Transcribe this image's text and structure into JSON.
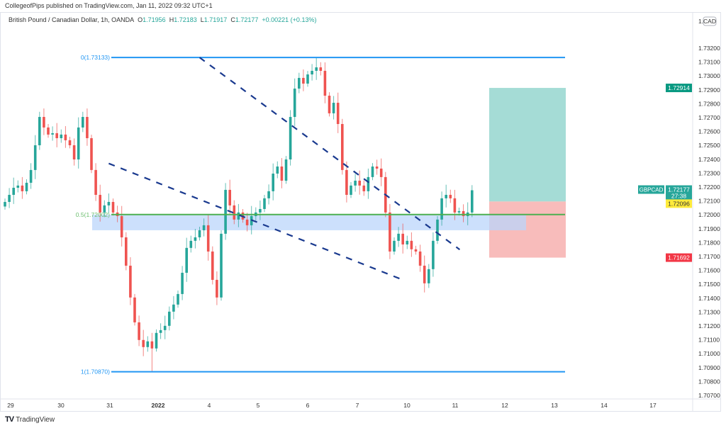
{
  "header": {
    "published": "CollegeofPips published on TradingView.com, Jan 11, 2022 09:32 UTC+1"
  },
  "legend": {
    "symbol": "British Pound / Canadian Dollar, 1h, OANDA",
    "o_label": "O",
    "o": "1.71956",
    "h_label": "H",
    "h": "1.72183",
    "l_label": "L",
    "l": "1.71917",
    "c_label": "C",
    "c": "1.72177",
    "change": "+0.00221 (+0.13%)"
  },
  "currency_badge": "CAD",
  "footer": {
    "logo_text": "TradingView",
    "logo_icon": "tradingview-logo-icon"
  },
  "colors": {
    "up": "#26a69a",
    "down": "#ef5350",
    "fib": "#2196f3",
    "mid": "#4caf50",
    "zone": "#bbd6fb",
    "trend": "#1a3a8f",
    "target": "#a5dcd6",
    "stop": "#f8bcbb"
  },
  "chart_data": {
    "type": "candlestick",
    "symbol": "GBPCAD",
    "timeframe": "1h",
    "ylim": [
      1.707,
      1.732
    ],
    "y_ticks": [
      "1.73200",
      "1.73100",
      "1.73000",
      "1.72900",
      "1.72800",
      "1.72700",
      "1.72600",
      "1.72500",
      "1.72400",
      "1.72300",
      "1.72200",
      "1.72100",
      "1.72000",
      "1.71900",
      "1.71800",
      "1.71700",
      "1.71600",
      "1.71500",
      "1.71400",
      "1.71300",
      "1.71200",
      "1.71100",
      "1.71000",
      "1.70900",
      "1.70800",
      "1.70700"
    ],
    "x_ticks": [
      "29",
      "30",
      "31",
      "2022",
      "4",
      "5",
      "6",
      "7",
      "10",
      "11",
      "12",
      "13",
      "14",
      "17"
    ],
    "closes": [
      1.72093,
      1.72144,
      1.72195,
      1.72211,
      1.7217,
      1.72231,
      1.72323,
      1.72501,
      1.72705,
      1.72629,
      1.72578,
      1.72588,
      1.72552,
      1.72578,
      1.72537,
      1.72501,
      1.72399,
      1.72629,
      1.72705,
      1.72552,
      1.72323,
      1.72144,
      1.72017,
      1.72068,
      1.72093,
      1.72017,
      1.71991,
      1.71838,
      1.71634,
      1.71405,
      1.71226,
      1.71099,
      1.71048,
      1.71089,
      1.71038,
      1.7115,
      1.7117,
      1.71201,
      1.71303,
      1.71354,
      1.7143,
      1.71583,
      1.71762,
      1.71813,
      1.71838,
      1.71889,
      1.71925,
      1.71736,
      1.71532,
      1.71405,
      1.71864,
      1.7218,
      1.72068,
      1.71966,
      1.72017,
      1.71966,
      1.71925,
      1.71991,
      1.72017,
      1.72042,
      1.72119,
      1.7217,
      1.72297,
      1.72348,
      1.72246,
      1.72399,
      1.72705,
      1.72909,
      1.72986,
      1.72945,
      1.73011,
      1.73037,
      1.73062,
      1.73037,
      1.72858,
      1.72731,
      1.72807,
      1.72654,
      1.72323,
      1.72144,
      1.72211,
      1.72246,
      1.72211,
      1.7217,
      1.72272,
      1.72348,
      1.72333,
      1.72272,
      1.72017,
      1.71736,
      1.71813,
      1.71864,
      1.71787,
      1.71813,
      1.71752,
      1.71736,
      1.71634,
      1.71507,
      1.71609,
      1.71813,
      1.71966,
      1.72119,
      1.72144,
      1.72119,
      1.72017,
      1.72027,
      1.71991,
      1.72017,
      1.72177
    ],
    "first_open": 1.7206,
    "fib_levels": [
      {
        "label": "0(1.73133)",
        "price": 1.73133
      },
      {
        "label": "0.5(1.72002)",
        "price": 1.72002
      },
      {
        "label": "1(1.70870)",
        "price": 1.7087
      }
    ],
    "zone": {
      "top": 1.72002,
      "bottom": 1.71935
    },
    "position": {
      "target": 1.72914,
      "entry": 1.72096,
      "stop": 1.71692
    },
    "price_labels": {
      "target": "1.72914",
      "last": "1.72177",
      "countdown": "27:38",
      "entry": "1.72096",
      "stop": "1.71692",
      "symbol_tag": "GBPCAD"
    },
    "trendlines": [
      {
        "from": [
          45,
          1.73133
        ],
        "to": [
          74,
          1.7175
        ]
      },
      {
        "from": [
          24,
          1.7237
        ],
        "to": [
          61,
          1.7153
        ]
      }
    ]
  }
}
